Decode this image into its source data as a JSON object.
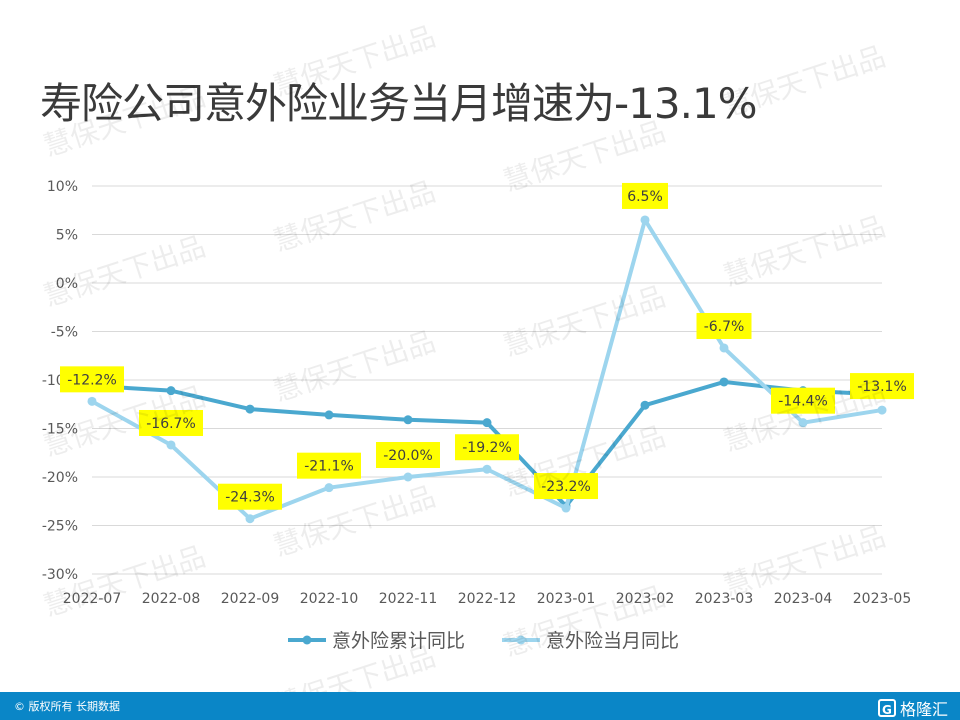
{
  "title": "寿险公司意外险业务当月增速为-13.1%",
  "watermark_text": "慧保天下出品",
  "footer": {
    "copyright": "© 版权所有 长期数据",
    "brand": "格隆汇",
    "brand_icon": "G"
  },
  "colors": {
    "series1": "#4aa8cf",
    "series2": "#9dd5ee",
    "label_bg": "#ffff00",
    "footer": "#0a86c7"
  },
  "chart_data": {
    "type": "line",
    "categories": [
      "2022-07",
      "2022-08",
      "2022-09",
      "2022-10",
      "2022-11",
      "2022-12",
      "2023-01",
      "2023-02",
      "2023-03",
      "2023-04",
      "2023-05"
    ],
    "y_ticks": [
      "10%",
      "5%",
      "0%",
      "-5%",
      "-10%",
      "-15%",
      "-20%",
      "-25%",
      "-30%"
    ],
    "ylim": [
      -30,
      10
    ],
    "grid": true,
    "legend_position": "bottom",
    "series": [
      {
        "name": "意外险累计同比",
        "values": [
          -10.6,
          -11.1,
          -13.0,
          -13.6,
          -14.1,
          -14.4,
          -23.0,
          -12.6,
          -10.2,
          -11.1,
          -11.5
        ],
        "labels": null
      },
      {
        "name": "意外险当月同比",
        "values": [
          -12.2,
          -16.7,
          -24.3,
          -21.1,
          -20.0,
          -19.2,
          -23.2,
          6.5,
          -6.7,
          -14.4,
          -13.1
        ],
        "labels": [
          "-12.2%",
          "-16.7%",
          "-24.3%",
          "-21.1%",
          "-20.0%",
          "-19.2%",
          "-23.2%",
          "6.5%",
          "-6.7%",
          "-14.4%",
          "-13.1%"
        ]
      }
    ]
  }
}
